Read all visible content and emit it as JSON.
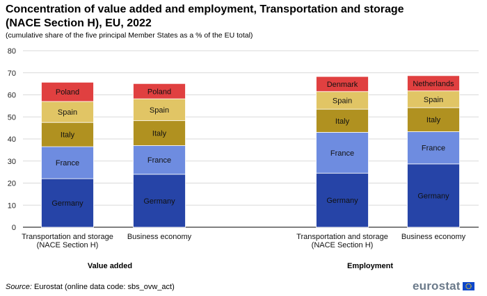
{
  "title": "Concentration of value added and employment, Transportation and storage (NACE Section H), EU, 2022",
  "subtitle": "(cumulative share of the five principal Member States as a % of the EU total)",
  "source": {
    "label": "Source:",
    "text": "Eurostat (online data code: sbs_ovw_act)"
  },
  "logo": {
    "text": "eurostat"
  },
  "colors": {
    "Germany": "#2644a7",
    "France": "#6e8ce0",
    "Italy": "#b09120",
    "Spain": "#e1c565",
    "Poland": "#e04040",
    "Denmark": "#e04040",
    "Netherlands": "#e04040",
    "grid": "#d9d9d9",
    "axis": "#000000"
  },
  "chart_data": {
    "type": "bar",
    "stacked": true,
    "ylim": [
      0,
      80
    ],
    "yticks": [
      0,
      10,
      20,
      30,
      40,
      50,
      60,
      70,
      80
    ],
    "grid": true,
    "groups": [
      {
        "label": "Value added",
        "bars": [
          {
            "category": [
              "Transportation and storage",
              "(NACE Section H)"
            ],
            "segments": [
              {
                "name": "Germany",
                "value": 22.0
              },
              {
                "name": "France",
                "value": 14.5
              },
              {
                "name": "Italy",
                "value": 11.0
              },
              {
                "name": "Spain",
                "value": 9.5
              },
              {
                "name": "Poland",
                "value": 8.7
              }
            ]
          },
          {
            "category": [
              "Business economy"
            ],
            "segments": [
              {
                "name": "Germany",
                "value": 24.0
              },
              {
                "name": "France",
                "value": 13.0
              },
              {
                "name": "Italy",
                "value": 11.3
              },
              {
                "name": "Spain",
                "value": 9.9
              },
              {
                "name": "Poland",
                "value": 6.9
              }
            ]
          }
        ]
      },
      {
        "label": "Employment",
        "bars": [
          {
            "category": [
              "Transportation and storage",
              "(NACE Section H)"
            ],
            "segments": [
              {
                "name": "Germany",
                "value": 24.5
              },
              {
                "name": "France",
                "value": 18.5
              },
              {
                "name": "Italy",
                "value": 10.5
              },
              {
                "name": "Spain",
                "value": 8.0
              },
              {
                "name": "Denmark",
                "value": 6.8
              }
            ]
          },
          {
            "category": [
              "Business economy"
            ],
            "segments": [
              {
                "name": "Germany",
                "value": 28.7
              },
              {
                "name": "France",
                "value": 14.6
              },
              {
                "name": "Italy",
                "value": 10.9
              },
              {
                "name": "Spain",
                "value": 7.6
              },
              {
                "name": "Netherlands",
                "value": 6.9
              }
            ]
          }
        ]
      }
    ]
  }
}
